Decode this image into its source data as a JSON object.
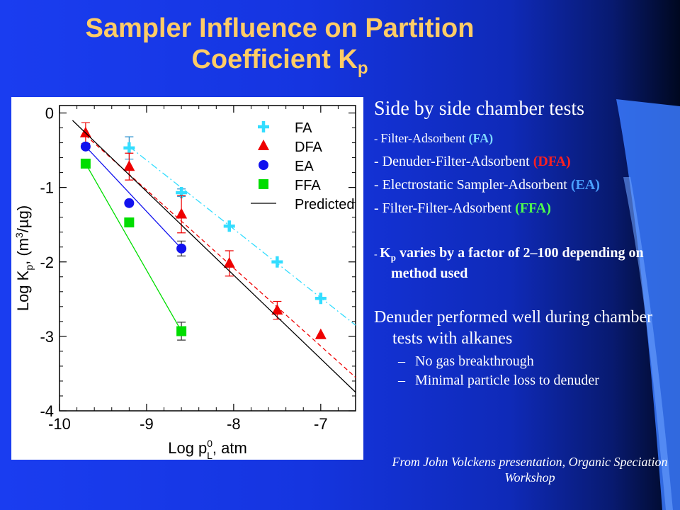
{
  "slide": {
    "title_line1": "Sampler Influence on Partition",
    "title_line2": "Coefficient K",
    "title_sub": "p"
  },
  "bullets": {
    "heading": "Side by side chamber tests",
    "items": [
      {
        "prefix": "- ",
        "text": "Filter-Adsorbent ",
        "abbr": "(FA)",
        "cls": "fa",
        "small": true
      },
      {
        "prefix": "- ",
        "text": "Denuder-Filter-Adsorbent ",
        "abbr": "(DFA)",
        "cls": "dfa",
        "small": false
      },
      {
        "prefix": "- ",
        "text": "Electrostatic Sampler-Adsorbent ",
        "abbr": "(EA)",
        "cls": "ea",
        "small": false
      },
      {
        "prefix": "- ",
        "text": "Filter-Filter-Adsorbent ",
        "abbr": "(FFA)",
        "cls": "ffa",
        "small": false
      }
    ],
    "kp_dash": "- ",
    "kp_k": "K",
    "kp_sub": "p",
    "kp_text": " varies by a factor of 2–100 depending on method used",
    "denuder": "Denuder performed well during chamber tests with alkanes",
    "sub_items": [
      "No gas breakthrough",
      "Minimal particle loss to denuder"
    ],
    "sub_dash": "–",
    "citation": "From John Volckens presentation, Organic Speciation Workshop"
  },
  "chart_data": {
    "type": "scatter",
    "xlim": [
      -10,
      -6.6
    ],
    "ylim": [
      -4,
      0.1
    ],
    "xticks": [
      -10,
      -9,
      -8,
      -7
    ],
    "xtick_labels": [
      "-10",
      "-9",
      "-8",
      "-7"
    ],
    "yticks": [
      0,
      -1,
      -2,
      -3,
      -4
    ],
    "ytick_labels": [
      "0",
      "-1",
      "-2",
      "-3",
      "-4"
    ],
    "xlabel": "Log p",
    "xlabel_sup": "0",
    "xlabel_sub": "L",
    "xlabel_tail": ", atm",
    "ylabel": "Log K",
    "ylabel_sub": "p",
    "ylabel_tail": ", (m",
    "ylabel_sup": "3",
    "ylabel_end": "/µg)",
    "legend_position": "top-right",
    "series": [
      {
        "name": "FA",
        "marker": "plus",
        "color": "#33ddff",
        "line": "dashdot",
        "points": [
          [
            -9.2,
            -0.47
          ],
          [
            -8.6,
            -1.07
          ],
          [
            -8.05,
            -1.52
          ],
          [
            -7.5,
            -2.0
          ],
          [
            -7.0,
            -2.49
          ]
        ],
        "err": [
          0.15,
          0.05,
          0.0,
          0.0,
          0.0
        ],
        "fit": [
          [
            -9.2,
            -0.45
          ],
          [
            -6.6,
            -2.85
          ]
        ]
      },
      {
        "name": "DFA",
        "marker": "triangle",
        "color": "#ee0000",
        "line": "dashed",
        "points": [
          [
            -9.7,
            -0.27
          ],
          [
            -9.2,
            -0.72
          ],
          [
            -8.6,
            -1.36
          ],
          [
            -8.05,
            -2.02
          ],
          [
            -7.5,
            -2.65
          ],
          [
            -7.0,
            -2.98
          ]
        ],
        "err": [
          0.14,
          0.18,
          0.25,
          0.17,
          0.12,
          0.0
        ],
        "fit": [
          [
            -9.7,
            -0.3
          ],
          [
            -6.6,
            -3.55
          ]
        ]
      },
      {
        "name": "EA",
        "marker": "circle",
        "color": "#1111ee",
        "line": "solid",
        "points": [
          [
            -9.7,
            -0.45
          ],
          [
            -9.2,
            -1.21
          ],
          [
            -8.6,
            -1.82
          ]
        ],
        "err": [
          0.0,
          0.0,
          0.1
        ],
        "fit": [
          [
            -9.7,
            -0.45
          ],
          [
            -8.6,
            -1.82
          ]
        ]
      },
      {
        "name": "FFA",
        "marker": "square",
        "color": "#00dd00",
        "line": "solid",
        "points": [
          [
            -9.7,
            -0.68
          ],
          [
            -9.2,
            -1.47
          ],
          [
            -8.6,
            -2.93
          ]
        ],
        "err": [
          0.0,
          0.0,
          0.12
        ],
        "fit": [
          [
            -9.7,
            -0.68
          ],
          [
            -8.6,
            -2.93
          ]
        ]
      },
      {
        "name": "Predicted",
        "marker": "none",
        "color": "#000000",
        "line": "solid",
        "points": [],
        "err": [],
        "fit": [
          [
            -9.85,
            -0.1
          ],
          [
            -6.6,
            -3.75
          ]
        ]
      }
    ]
  }
}
